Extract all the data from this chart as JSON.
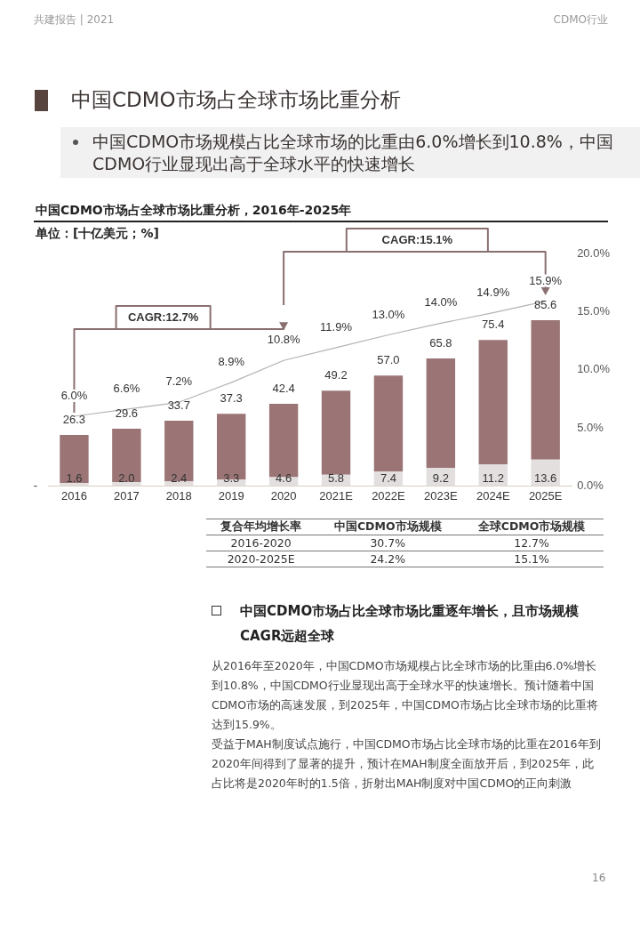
{
  "chart_data": [
    {
      "type": "other",
      "title": "中国CDMO市场占全球市场比重分析",
      "annotations": [
        "共建报告 | 2021",
        "CDMO行业",
        "中国CDMO市场规模占比全球市场的比重由6.0%增长到10.8%，中国CDMO行业显现出高于全球水平的快速增长"
      ]
    },
    {
      "type": "bar",
      "title": "中国CDMO市场占全球市场比重分析，2016年-2025年",
      "subtitle": "单位：[十亿美元；%]",
      "categories": [
        "2016",
        "2017",
        "2018",
        "2019",
        "2020",
        "2021E",
        "2022E",
        "2023E",
        "2024E",
        "2025E"
      ],
      "stacked": true,
      "totals": [
        "26.3",
        "29.6",
        "33.7",
        "37.3",
        "42.4",
        "49.2",
        "57.0",
        "65.8",
        "75.4",
        "85.6"
      ],
      "series": [
        {
          "color": "#e3dfdf",
          "values": [
            1.6,
            2.0,
            2.4,
            3.3,
            4.6,
            5.8,
            7.4,
            9.2,
            11.2,
            13.6
          ],
          "value_labels": [
            "1.6",
            "2.0",
            "2.4",
            "3.3",
            "4.6",
            "5.8",
            "7.4",
            "9.2",
            "11.2",
            "13.6"
          ]
        },
        {
          "color": "#9b7576",
          "values": [
            24.7,
            27.6,
            31.3,
            34.0,
            37.8,
            43.4,
            49.6,
            56.6,
            64.2,
            72.0
          ]
        },
        {
          "type": "line",
          "axis": "y2",
          "color": "#b3b3b3",
          "values": [
            6.0,
            6.6,
            7.2,
            8.9,
            10.8,
            11.9,
            13.0,
            14.0,
            14.9,
            15.9
          ],
          "value_labels": [
            "6.0%",
            "6.6%",
            "7.2%",
            "8.9%",
            "10.8%",
            "11.9%",
            "13.0%",
            "14.0%",
            "14.9%",
            "15.9%"
          ]
        }
      ],
      "y2lim": [
        0,
        20
      ],
      "y2ticks": [
        {
          "value": 0,
          "label": "0.0%"
        },
        {
          "value": 5,
          "label": "5.0%"
        },
        {
          "value": 10,
          "label": "10.0%"
        },
        {
          "value": 15,
          "label": "15.0%"
        },
        {
          "value": 20,
          "label": "20.0%"
        }
      ],
      "grid": false,
      "legend": false,
      "marker": "none",
      "annotations": [
        "CAGR:12.7%",
        "CAGR:15.1%",
        "-"
      ]
    },
    {
      "type": "other",
      "annotations": [
        "复合年均增长率",
        "中国CDMO市场规模",
        "全球CDMO市场规模",
        "2016-2020",
        "30.7%",
        "12.7%",
        "2020-2025E",
        "24.2%",
        "15.1%",
        "中国CDMO市场占比全球市场比重逐年增长，且市场规模CAGR远超全球",
        "从2016年至2020年，中国CDMO市场规模占比全球市场的比重由6.0%增长到10.8%，中国CDMO行业显现出高于全球水平的快速增长。预计随着中国CDMO市场的高速发展，到2025年，中国CDMO市场占比全球市场的比重将达到15.9%。",
        "受益于MAH制度试点施行，中国CDMO市场占比全球市场的比重在2016年到2020年间得到了显著的提升，预计在MAH制度全面放开后，到2025年，此占比将是2020年时的1.5倍，折射出MAH制度对中国CDMO的正向刺激",
        "16"
      ]
    }
  ]
}
